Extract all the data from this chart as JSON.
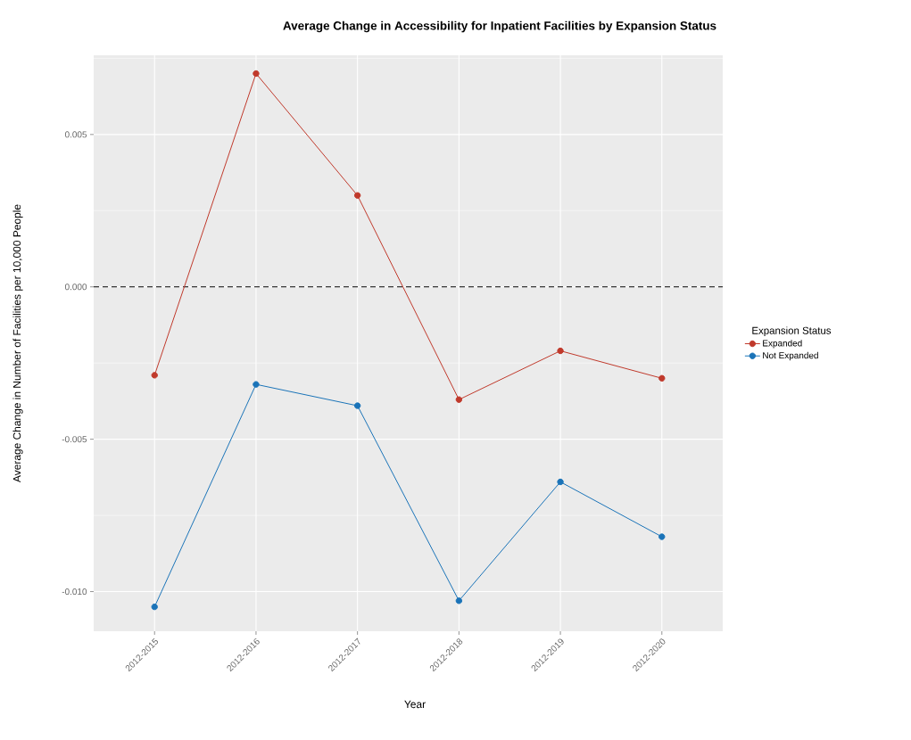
{
  "chart_data": {
    "type": "line",
    "title": "Average Change in Accessibility for Inpatient Facilities by Expansion Status",
    "xlabel": "Year",
    "ylabel": "Average Change in Number of Facilities per 10,000 People",
    "legend_title": "Expansion Status",
    "categories": [
      "2012-2015",
      "2012-2016",
      "2012-2017",
      "2012-2018",
      "2012-2019",
      "2012-2020"
    ],
    "series": [
      {
        "name": "Expanded",
        "color": "#c0392b",
        "values": [
          -0.0029,
          0.007,
          0.003,
          -0.0037,
          -0.0021,
          -0.003
        ]
      },
      {
        "name": "Not Expanded",
        "color": "#1a73b8",
        "values": [
          -0.0105,
          -0.0032,
          -0.0039,
          -0.0103,
          -0.0064,
          -0.0082
        ]
      }
    ],
    "ylim": [
      -0.0113,
      0.0076
    ],
    "yticks": [
      {
        "value": -0.01,
        "label": "-0.010"
      },
      {
        "value": -0.005,
        "label": "-0.005"
      },
      {
        "value": 0,
        "label": "0.000"
      },
      {
        "value": 0.005,
        "label": "0.005"
      }
    ],
    "ref_lines": [
      {
        "axis": "y",
        "value": 0,
        "color": "#000000",
        "line_style": "dashed"
      }
    ],
    "grid": true,
    "legend": "right",
    "marker": "circle",
    "line_style": "solid"
  }
}
